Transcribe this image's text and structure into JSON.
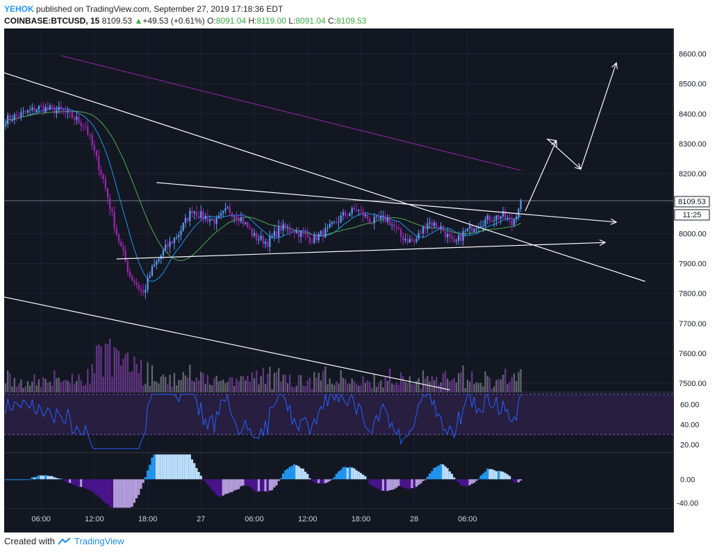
{
  "header": {
    "author": "YEHOK",
    "published_text": " published on TradingView.com, September 27, 2019 17:18:36 EDT",
    "symbol": "COINBASE:BTCUSD, 15",
    "last": "8109.53",
    "change": "+49.53 (+0.61%)",
    "o_label": "O:",
    "o_value": "8091.04",
    "h_label": "H:",
    "h_value": "8119.00",
    "l_label": "L:",
    "l_value": "8091.04",
    "c_label": "C:",
    "c_value": "8109.53"
  },
  "price_badge": "8109.53",
  "countdown_badge": "11:25",
  "footer": {
    "created": "Created with",
    "brand": "TradingView"
  },
  "colors": {
    "background": "#131722",
    "up": "#5b9cf6",
    "down": "#9c27b0",
    "volume_up": "#787b86",
    "volume_down": "#7b3fa1",
    "ma_long": "#9c27b0",
    "ma_mid": "#4caf50",
    "ma_short": "#2196f3",
    "rsi_line": "#2962ff",
    "macd_up_strong": "#2196f3",
    "macd_up_weak": "#bbdefb",
    "macd_down_strong": "#4a148c",
    "macd_down_weak": "#b39ddb"
  },
  "chart_data": {
    "type": "candlestick",
    "x_ticks": [
      "06:00",
      "12:00",
      "18:00",
      "27",
      "06:00",
      "12:00",
      "18:00",
      "28",
      "06:00"
    ],
    "price_axis": {
      "ticks": [
        7500,
        7600,
        7700,
        7800,
        7900,
        8000,
        8100,
        8200,
        8300,
        8400,
        8500,
        8600
      ],
      "range": [
        7470,
        8680
      ]
    },
    "last_price": 8109.53,
    "rsi_axis": {
      "ticks": [
        20,
        40,
        60
      ],
      "bands": [
        30,
        70
      ],
      "range": [
        12,
        72
      ]
    },
    "macd_axis": {
      "ticks": [
        "-40.00",
        "0.00"
      ],
      "range": [
        -50,
        45
      ]
    },
    "anchors": [
      {
        "x": 0,
        "price": 8380
      },
      {
        "x": 8,
        "price": 8400
      },
      {
        "x": 15,
        "price": 8420
      },
      {
        "x": 25,
        "price": 8410
      },
      {
        "x": 30,
        "price": 8390
      },
      {
        "x": 36,
        "price": 8360
      },
      {
        "x": 44,
        "price": 8180
      },
      {
        "x": 50,
        "price": 8000
      },
      {
        "x": 56,
        "price": 7860
      },
      {
        "x": 62,
        "price": 7800
      },
      {
        "x": 66,
        "price": 7880
      },
      {
        "x": 72,
        "price": 7950
      },
      {
        "x": 78,
        "price": 8000
      },
      {
        "x": 84,
        "price": 8080
      },
      {
        "x": 88,
        "price": 8060
      },
      {
        "x": 95,
        "price": 8040
      },
      {
        "x": 100,
        "price": 8080
      },
      {
        "x": 106,
        "price": 8050
      },
      {
        "x": 112,
        "price": 7990
      },
      {
        "x": 118,
        "price": 7970
      },
      {
        "x": 124,
        "price": 8020
      },
      {
        "x": 130,
        "price": 8010
      },
      {
        "x": 138,
        "price": 7980
      },
      {
        "x": 145,
        "price": 8010
      },
      {
        "x": 152,
        "price": 8060
      },
      {
        "x": 158,
        "price": 8080
      },
      {
        "x": 165,
        "price": 8040
      },
      {
        "x": 172,
        "price": 8050
      },
      {
        "x": 178,
        "price": 7990
      },
      {
        "x": 184,
        "price": 7970
      },
      {
        "x": 190,
        "price": 8040
      },
      {
        "x": 196,
        "price": 8020
      },
      {
        "x": 202,
        "price": 7960
      },
      {
        "x": 206,
        "price": 8000
      },
      {
        "x": 212,
        "price": 8030
      },
      {
        "x": 218,
        "price": 8050
      },
      {
        "x": 224,
        "price": 8060
      },
      {
        "x": 228,
        "price": 8030
      },
      {
        "x": 232,
        "price": 8110
      }
    ],
    "visible_bars": 233,
    "total_bar_span": 300,
    "candles_per_tick": 24,
    "first_tick_offset": 16,
    "drawings": [
      {
        "name": "upper-trendline",
        "from": [
          -2,
          8540
        ],
        "to": [
          288,
          7840
        ],
        "arrow": false
      },
      {
        "name": "lower-trendline",
        "from": [
          -2,
          7790
        ],
        "to": [
          200,
          7478
        ],
        "arrow": false
      },
      {
        "name": "triangle-top",
        "from": [
          68,
          8170
        ],
        "to": [
          275,
          8038
        ],
        "arrow": true
      },
      {
        "name": "triangle-bottom",
        "from": [
          50,
          7915
        ],
        "to": [
          270,
          7970
        ],
        "arrow": true
      },
      {
        "name": "forecast-path",
        "points": [
          [
            234,
            8075
          ],
          [
            248,
            8310
          ],
          [
            244,
            8315
          ],
          [
            259,
            8215
          ],
          [
            275,
            8570
          ]
        ],
        "arrow": true
      }
    ]
  }
}
